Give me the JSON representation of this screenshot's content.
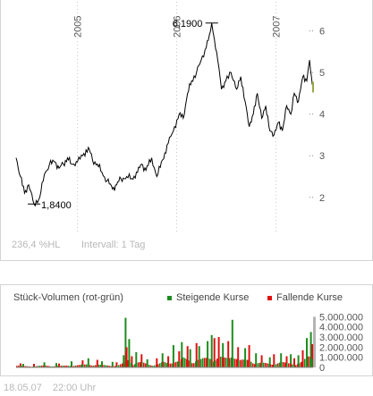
{
  "price_chart": {
    "info_change": "236,4 %HL",
    "info_interval": "Intervall: 1 Tag"
  },
  "volume_chart": {
    "title": "Stück-Volumen (rot-grün)",
    "legend_up": "Steigende Kurse",
    "legend_down": "Fallende Kurse"
  },
  "footer": {
    "date": "18.05.07",
    "time": "22:00 Uhr"
  },
  "colors": {
    "price_line": "#000000",
    "up": "#1e8c1e",
    "down": "#e01010",
    "grid": "#c8c8c8",
    "tick_text": "#555555",
    "volume_scale_bar": "#b4b4b4"
  },
  "chart_data": [
    {
      "type": "line",
      "title": "",
      "xlabel": "",
      "ylabel": "",
      "x_range": [
        "2004-05-20",
        "2007-05-18"
      ],
      "ylim": [
        1.2,
        6.4
      ],
      "y_ticks": [
        2,
        3,
        4,
        5,
        6
      ],
      "y_tick_labels": [
        "2",
        "3",
        "4",
        "5",
        "6"
      ],
      "x_ticks": [
        {
          "label": "2005",
          "date": "2005-01-01"
        },
        {
          "label": "2006",
          "date": "2006-01-01"
        },
        {
          "label": "2007",
          "date": "2007-01-01"
        }
      ],
      "grid": "vertical year lines",
      "annotations": [
        {
          "label": "6,1900",
          "date": "2006-05-10",
          "value": 6.19,
          "kind": "high"
        },
        {
          "label": "1,8400",
          "date": "2004-07-25",
          "value": 1.84,
          "kind": "low"
        }
      ],
      "series": [
        {
          "points": [
            [
              "2004-05-20",
              2.95
            ],
            [
              "2004-06-05",
              2.5
            ],
            [
              "2004-06-20",
              2.1
            ],
            [
              "2004-07-05",
              2.3
            ],
            [
              "2004-07-25",
              1.84
            ],
            [
              "2004-08-15",
              2.0
            ],
            [
              "2004-09-01",
              2.55
            ],
            [
              "2004-09-20",
              2.8
            ],
            [
              "2004-10-10",
              2.85
            ],
            [
              "2004-10-25",
              2.7
            ],
            [
              "2004-11-10",
              2.8
            ],
            [
              "2004-11-25",
              2.95
            ],
            [
              "2004-12-10",
              2.8
            ],
            [
              "2005-01-01",
              2.85
            ],
            [
              "2005-01-20",
              3.0
            ],
            [
              "2005-02-10",
              3.2
            ],
            [
              "2005-02-25",
              2.9
            ],
            [
              "2005-03-15",
              2.8
            ],
            [
              "2005-04-01",
              2.6
            ],
            [
              "2005-04-20",
              2.4
            ],
            [
              "2005-05-10",
              2.2
            ],
            [
              "2005-05-25",
              2.3
            ],
            [
              "2005-06-10",
              2.45
            ],
            [
              "2005-07-01",
              2.5
            ],
            [
              "2005-07-20",
              2.45
            ],
            [
              "2005-08-10",
              2.6
            ],
            [
              "2005-08-25",
              2.8
            ],
            [
              "2005-09-10",
              2.65
            ],
            [
              "2005-10-01",
              2.95
            ],
            [
              "2005-10-20",
              2.5
            ],
            [
              "2005-11-10",
              2.9
            ],
            [
              "2005-12-01",
              3.3
            ],
            [
              "2005-12-20",
              3.6
            ],
            [
              "2006-01-10",
              4.0
            ],
            [
              "2006-01-25",
              3.9
            ],
            [
              "2006-02-10",
              4.5
            ],
            [
              "2006-02-25",
              4.8
            ],
            [
              "2006-03-15",
              5.0
            ],
            [
              "2006-04-01",
              5.3
            ],
            [
              "2006-04-20",
              5.6
            ],
            [
              "2006-05-01",
              5.9
            ],
            [
              "2006-05-10",
              6.19
            ],
            [
              "2006-05-20",
              5.8
            ],
            [
              "2006-06-01",
              5.3
            ],
            [
              "2006-06-15",
              4.6
            ],
            [
              "2006-07-01",
              4.8
            ],
            [
              "2006-07-20",
              5.0
            ],
            [
              "2006-08-10",
              4.6
            ],
            [
              "2006-08-25",
              4.9
            ],
            [
              "2006-09-10",
              4.3
            ],
            [
              "2006-09-25",
              3.7
            ],
            [
              "2006-10-10",
              4.0
            ],
            [
              "2006-10-25",
              4.5
            ],
            [
              "2006-11-10",
              3.9
            ],
            [
              "2006-11-25",
              4.2
            ],
            [
              "2006-12-10",
              3.6
            ],
            [
              "2006-12-25",
              3.5
            ],
            [
              "2007-01-10",
              3.8
            ],
            [
              "2007-01-25",
              3.6
            ],
            [
              "2007-02-10",
              4.2
            ],
            [
              "2007-02-25",
              4.0
            ],
            [
              "2007-03-10",
              4.5
            ],
            [
              "2007-03-25",
              4.3
            ],
            [
              "2007-04-10",
              4.9
            ],
            [
              "2007-04-25",
              4.8
            ],
            [
              "2007-05-05",
              5.3
            ],
            [
              "2007-05-12",
              4.9
            ],
            [
              "2007-05-18",
              4.65
            ]
          ]
        }
      ]
    },
    {
      "type": "bar",
      "title": "Stück-Volumen (rot-grün)",
      "xlabel": "",
      "ylabel": "",
      "ylim": [
        0,
        5300000
      ],
      "y_ticks": [
        0,
        1000000,
        2000000,
        3000000,
        4000000,
        5000000
      ],
      "y_tick_labels": [
        "0",
        "1.000.000",
        "2.000.000",
        "3.000.000",
        "4.000.000",
        "5.000.000"
      ],
      "legend": [
        {
          "name": "Steigende Kurse",
          "color": "#1e8c1e"
        },
        {
          "name": "Fallende Kurse",
          "color": "#e01010"
        }
      ],
      "legend_position": "top-right",
      "x_range": [
        "2004-05-20",
        "2007-05-18"
      ],
      "series": [
        {
          "name": "Steigende Kurse",
          "points": [
            [
              "2004-06-15",
              350000
            ],
            [
              "2004-09-01",
              500000
            ],
            [
              "2004-10-15",
              420000
            ],
            [
              "2004-12-10",
              600000
            ],
            [
              "2005-02-10",
              900000
            ],
            [
              "2005-04-01",
              600000
            ],
            [
              "2005-05-10",
              550000
            ],
            [
              "2005-06-20",
              1200000
            ],
            [
              "2005-06-27",
              4900000
            ],
            [
              "2005-07-10",
              2800000
            ],
            [
              "2005-08-05",
              1500000
            ],
            [
              "2005-09-15",
              800000
            ],
            [
              "2005-11-10",
              1400000
            ],
            [
              "2005-12-20",
              2200000
            ],
            [
              "2006-01-20",
              2500000
            ],
            [
              "2006-02-20",
              1800000
            ],
            [
              "2006-03-25",
              2100000
            ],
            [
              "2006-04-25",
              2600000
            ],
            [
              "2006-05-10",
              3200000
            ],
            [
              "2006-06-20",
              2400000
            ],
            [
              "2006-07-25",
              4700000
            ],
            [
              "2006-09-10",
              1900000
            ],
            [
              "2006-10-20",
              1400000
            ],
            [
              "2006-12-10",
              1000000
            ],
            [
              "2007-01-20",
              1400000
            ],
            [
              "2007-02-25",
              1300000
            ],
            [
              "2007-03-25",
              1200000
            ],
            [
              "2007-04-25",
              2900000
            ],
            [
              "2007-05-10",
              3500000
            ]
          ]
        },
        {
          "name": "Fallende Kurse",
          "points": [
            [
              "2004-06-05",
              400000
            ],
            [
              "2004-07-25",
              350000
            ],
            [
              "2004-10-25",
              380000
            ],
            [
              "2005-01-20",
              700000
            ],
            [
              "2005-03-15",
              750000
            ],
            [
              "2005-05-25",
              500000
            ],
            [
              "2005-07-01",
              2000000
            ],
            [
              "2005-07-20",
              1100000
            ],
            [
              "2005-08-25",
              1300000
            ],
            [
              "2005-10-20",
              900000
            ],
            [
              "2005-12-01",
              1100000
            ],
            [
              "2006-01-10",
              1600000
            ],
            [
              "2006-02-10",
              2100000
            ],
            [
              "2006-03-15",
              2400000
            ],
            [
              "2006-05-20",
              2900000
            ],
            [
              "2006-06-05",
              3000000
            ],
            [
              "2006-07-10",
              2600000
            ],
            [
              "2006-08-15",
              2000000
            ],
            [
              "2006-09-25",
              2200000
            ],
            [
              "2006-11-10",
              1200000
            ],
            [
              "2006-12-25",
              1300000
            ],
            [
              "2007-02-10",
              1100000
            ],
            [
              "2007-03-10",
              900000
            ],
            [
              "2007-04-10",
              1700000
            ],
            [
              "2007-05-15",
              2300000
            ]
          ]
        }
      ]
    }
  ]
}
